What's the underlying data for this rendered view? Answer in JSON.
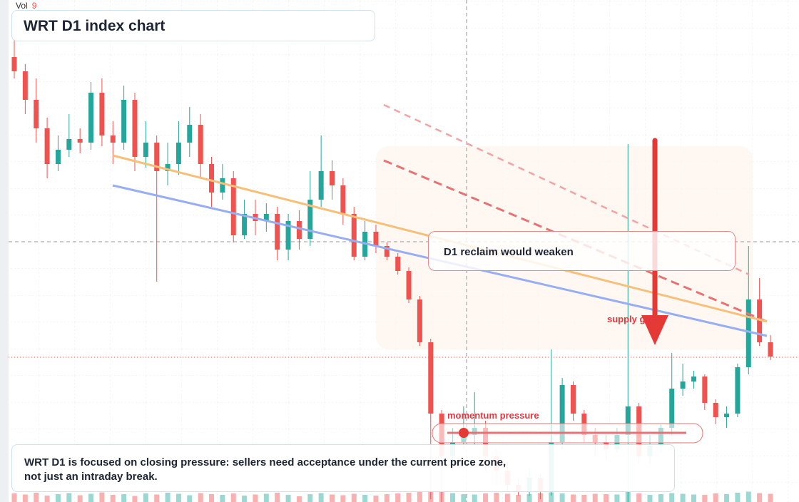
{
  "title": "WRT D1 index chart",
  "volume_label": "Vol",
  "volume_value": "9",
  "callout": "D1 reclaim would weaken",
  "supply_label": "supply gate",
  "momentum_label": "momentum pressure",
  "note": "WRT D1 is focused on closing pressure: sellers need acceptance under the current price zone, not just an intraday break.",
  "chart_data": {
    "type": "candlestick",
    "up_color": "#26a69a",
    "down_color": "#ef5350",
    "ylim": [
      0,
      70.4
    ],
    "vol_ylim": [
      0,
      20
    ],
    "open": [
      62.4,
      60.4,
      56.4,
      52.4,
      47.4,
      49.4,
      50.9,
      50.4,
      57.4,
      51.4,
      50.4,
      56.4,
      48.4,
      50.4,
      46.4,
      47.4,
      50.4,
      52.9,
      47.4,
      43.4,
      45.4,
      37.4,
      40.4,
      39.4,
      40.4,
      35.4,
      39.4,
      36.9,
      42.4,
      46.4,
      44.4,
      40.4,
      34.4,
      37.9,
      35.9,
      34.4,
      32.4,
      28.4,
      22.4,
      12.4,
      6.4,
      8.4,
      9.4,
      10.4,
      6.4,
      4.4,
      2.4,
      1.4,
      3.4,
      1.4,
      8.4,
      16.4,
      12.4,
      9.4,
      8.4,
      7.4,
      9.4,
      13.4,
      6.4,
      7.9,
      10.4,
      15.9,
      16.9,
      17.6,
      13.9,
      11.9,
      12.4,
      18.9,
      28.4,
      22.4
    ],
    "high": [
      64.9,
      61.4,
      59.4,
      53.9,
      51.4,
      54.4,
      52.4,
      58.9,
      59.4,
      53.4,
      58.4,
      57.4,
      53.4,
      51.4,
      50.4,
      53.4,
      55.4,
      54.4,
      48.4,
      47.4,
      46.4,
      42.4,
      42.4,
      41.9,
      41.4,
      40.4,
      40.9,
      46.4,
      51.4,
      47.9,
      45.4,
      41.4,
      39.4,
      38.9,
      36.4,
      34.9,
      32.9,
      28.9,
      22.9,
      12.9,
      10.4,
      13.4,
      15.4,
      11.4,
      7.4,
      5.4,
      3.4,
      4.9,
      3.9,
      21.4,
      17.4,
      16.9,
      12.9,
      10.4,
      9.4,
      10.4,
      50.2,
      13.9,
      9.4,
      10.9,
      20.9,
      19.4,
      18.4,
      17.9,
      14.4,
      13.4,
      19.4,
      35.9,
      31.4,
      23.4
    ],
    "low": [
      59.4,
      54.4,
      50.4,
      45.4,
      46.4,
      48.4,
      48.9,
      49.4,
      49.9,
      47.4,
      49.4,
      46.4,
      46.9,
      30.9,
      44.4,
      45.9,
      48.4,
      45.4,
      41.4,
      42.4,
      36.4,
      36.9,
      37.4,
      37.9,
      33.9,
      33.9,
      35.4,
      35.9,
      41.4,
      42.4,
      38.9,
      33.9,
      33.9,
      34.9,
      33.9,
      31.9,
      27.9,
      21.9,
      0.4,
      0,
      4.4,
      7.4,
      7.9,
      4.4,
      2.4,
      1.4,
      0.9,
      0.9,
      0.4,
      0.9,
      7.4,
      11.4,
      8.4,
      6.4,
      5.9,
      6.9,
      0,
      5.4,
      5.4,
      6.9,
      9.4,
      14.9,
      15.9,
      12.9,
      10.9,
      10.4,
      11.9,
      17.9,
      21.9,
      19.9
    ],
    "close": [
      60.4,
      56.4,
      52.4,
      47.4,
      49.4,
      50.9,
      50.4,
      57.4,
      51.4,
      50.4,
      56.4,
      48.4,
      50.4,
      46.4,
      47.4,
      50.4,
      52.9,
      47.4,
      43.4,
      45.4,
      37.4,
      40.4,
      39.4,
      40.4,
      35.4,
      39.4,
      36.9,
      42.4,
      46.4,
      44.4,
      40.4,
      34.4,
      37.9,
      35.9,
      34.4,
      32.4,
      28.4,
      22.4,
      12.4,
      6.4,
      8.4,
      9.4,
      10.4,
      6.4,
      4.4,
      2.4,
      1.4,
      3.4,
      1.4,
      8.4,
      16.4,
      12.4,
      9.4,
      8.4,
      7.4,
      9.4,
      13.4,
      6.4,
      7.9,
      10.4,
      15.9,
      16.9,
      17.6,
      13.9,
      11.9,
      12.4,
      18.9,
      28.4,
      22.4,
      20.4
    ],
    "volume": [
      2.4,
      2.1,
      2.6,
      1.8,
      2.2,
      2.5,
      1.9,
      2.3,
      2.7,
      2.0,
      2.2,
      1.7,
      2.4,
      2.1,
      2.6,
      2.3,
      1.9,
      2.5,
      2.2,
      2.0,
      2.4,
      1.8,
      2.1,
      2.3,
      2.6,
      2.0,
      1.6,
      2.2,
      2.5,
      2.1,
      1.9,
      2.3,
      2.0,
      1.8,
      2.2,
      2.4,
      2.6,
      2.8,
      3.0,
      2.9,
      2.5,
      2.2,
      2.1,
      2.4,
      2.6,
      2.3,
      2.0,
      2.2,
      2.5,
      2.7,
      2.4,
      2.1,
      2.0,
      2.3,
      2.2,
      2.1,
      3.1,
      2.4,
      2.0,
      2.2,
      2.5,
      2.3,
      2.1,
      2.0,
      2.4,
      2.2,
      2.6,
      2.9,
      2.5,
      2.3
    ]
  }
}
